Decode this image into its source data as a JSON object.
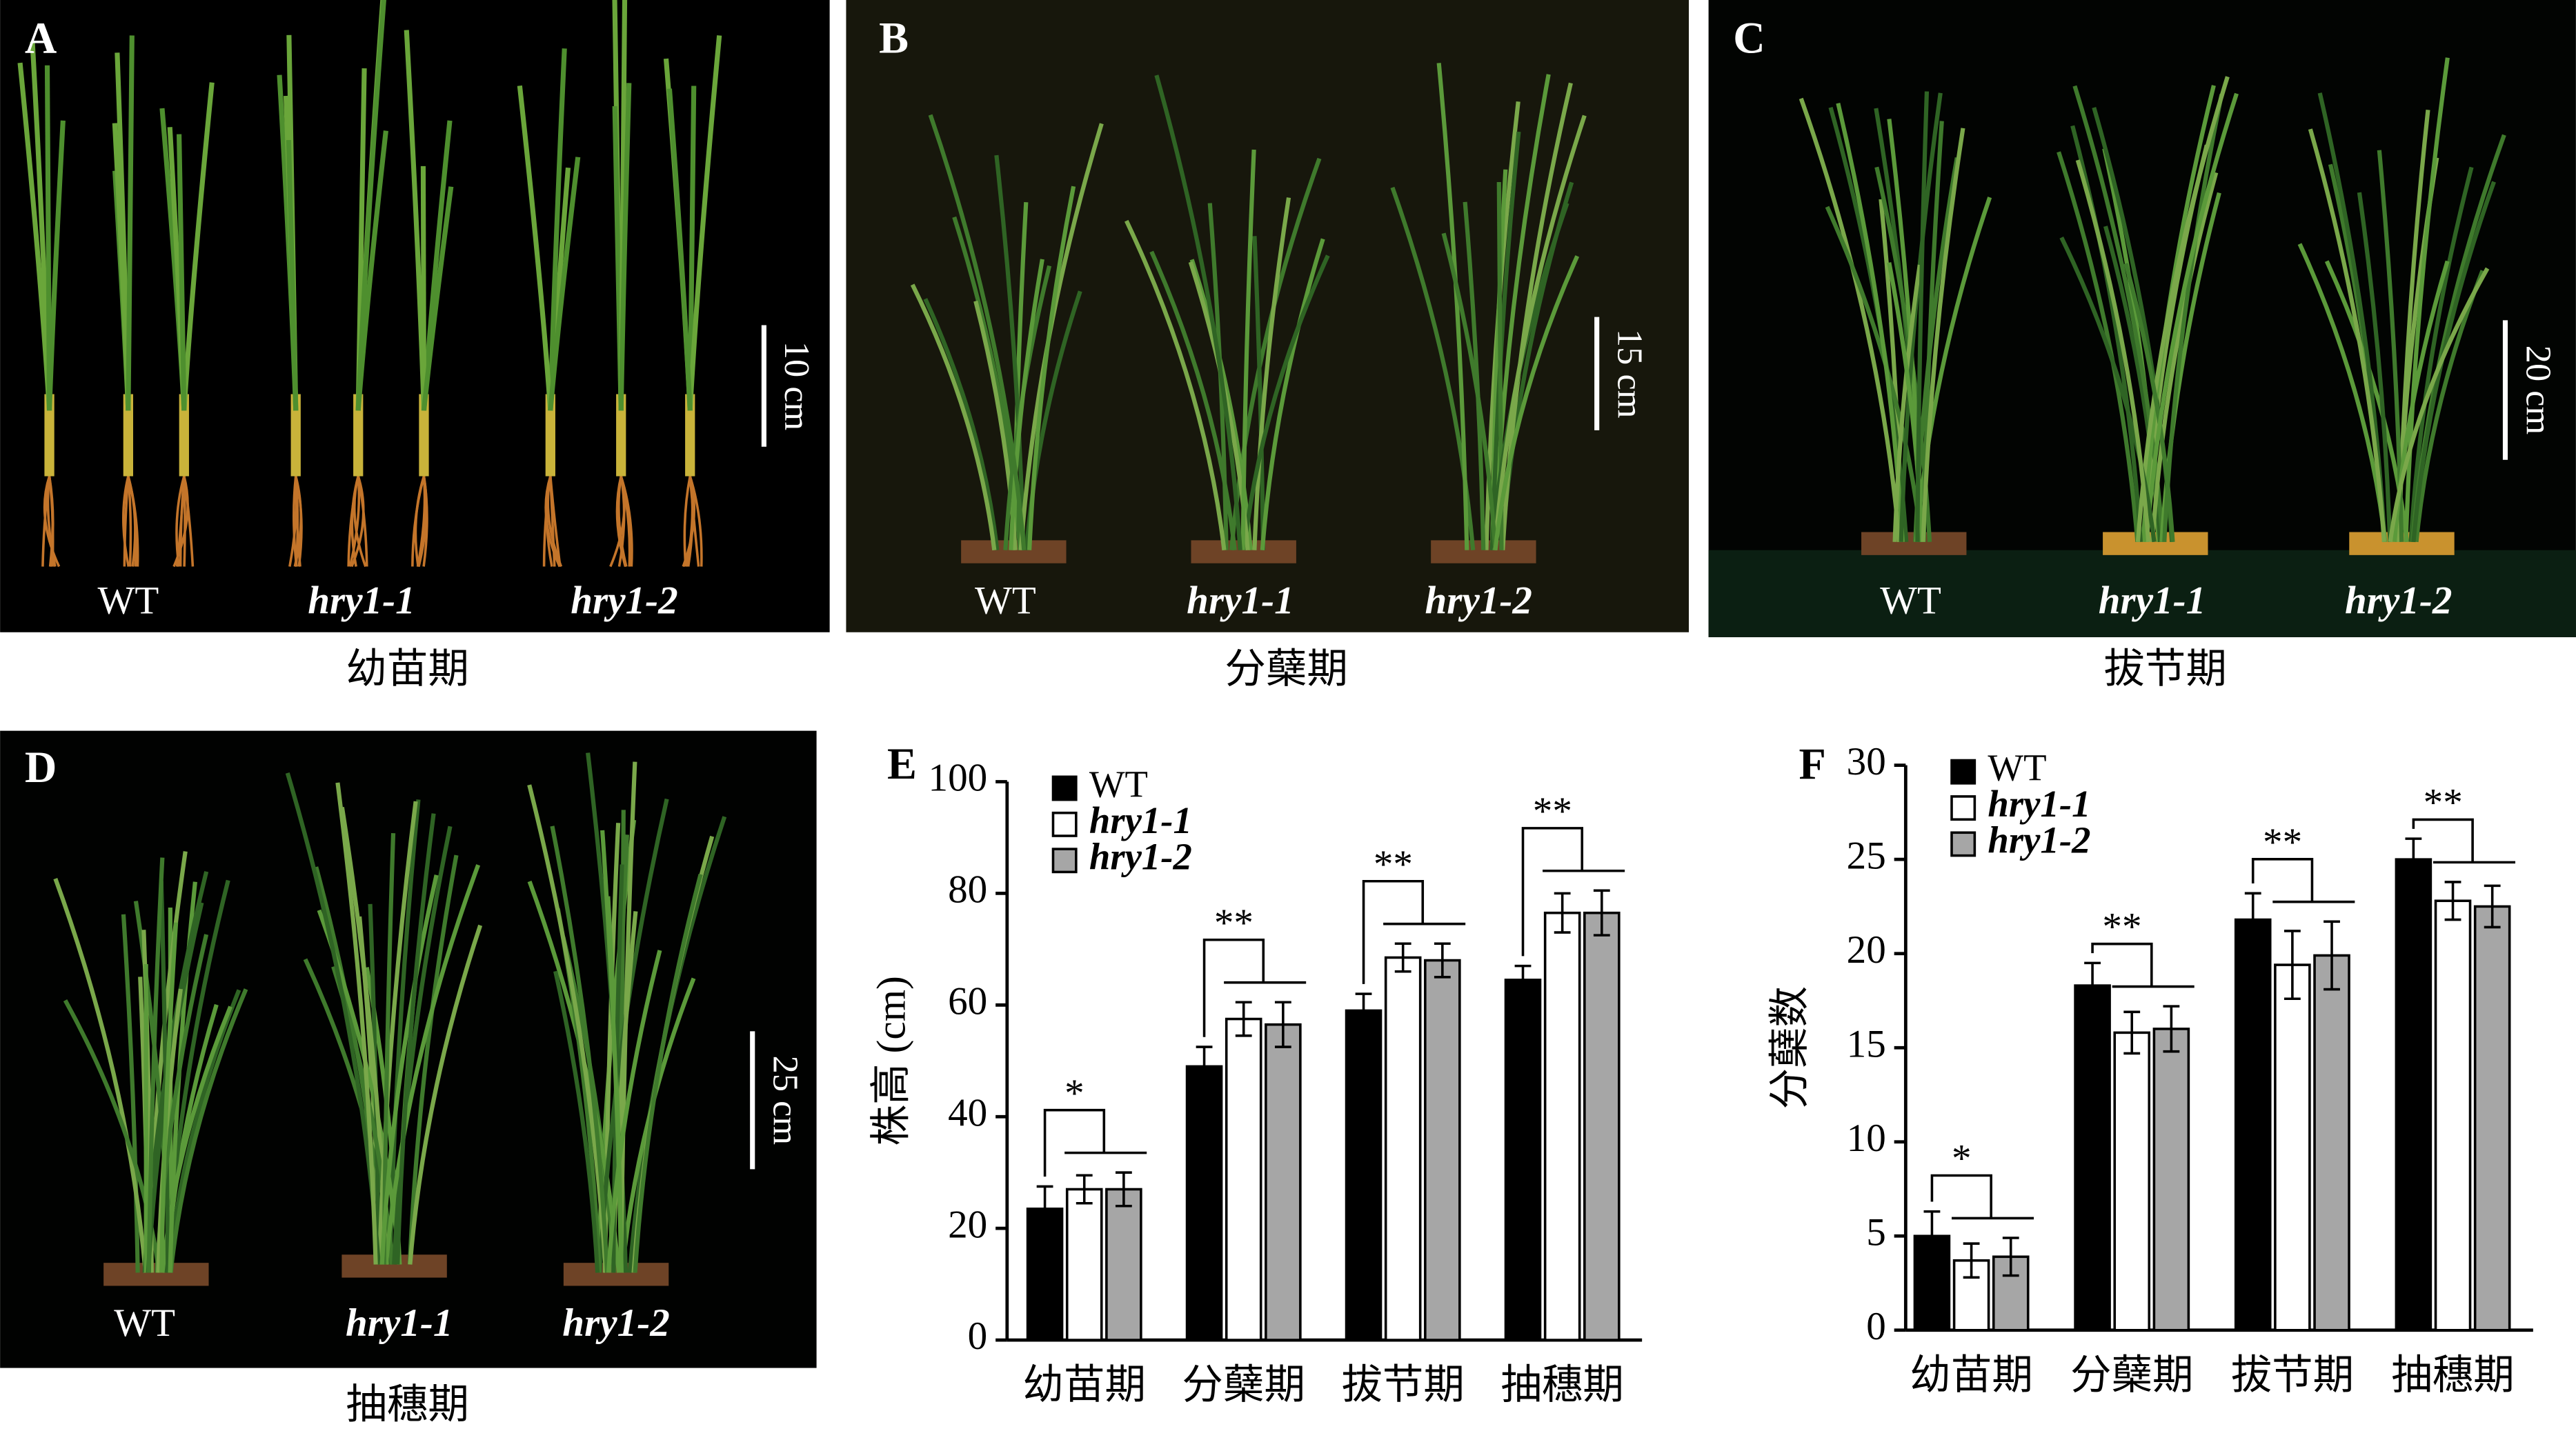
{
  "panels": [
    {
      "letter": "A",
      "genotypes": [
        "WT",
        "hry1-1",
        "hry1-2"
      ],
      "scale_bar": "10 cm",
      "caption": "幼苗期"
    },
    {
      "letter": "B",
      "genotypes": [
        "WT",
        "hry1-1",
        "hry1-2"
      ],
      "scale_bar": "15 cm",
      "caption": "分蘖期"
    },
    {
      "letter": "C",
      "genotypes": [
        "WT",
        "hry1-1",
        "hry1-2"
      ],
      "scale_bar": "20 cm",
      "caption": "拔节期"
    },
    {
      "letter": "D",
      "genotypes": [
        "WT",
        "hry1-1",
        "hry1-2"
      ],
      "scale_bar": "25 cm",
      "caption": "抽穗期"
    }
  ],
  "chart_data": [
    {
      "type": "bar",
      "label": "E",
      "y_label": "株高 (cm)",
      "categories": [
        "幼苗期",
        "分蘖期",
        "拔节期",
        "抽穗期"
      ],
      "series": [
        {
          "name": "WT",
          "color": "#000000",
          "italic": false,
          "values": [
            23.5,
            49,
            59,
            64.5
          ],
          "errors": [
            4,
            3.5,
            3,
            2.5
          ]
        },
        {
          "name": "hry1-1",
          "color": "#ffffff",
          "italic": true,
          "values": [
            27,
            57.5,
            68.5,
            76.5
          ],
          "errors": [
            2.5,
            3,
            2.5,
            3.5
          ]
        },
        {
          "name": "hry1-2",
          "color": "#a6a6a6",
          "italic": true,
          "values": [
            27,
            56.5,
            68,
            76.5
          ],
          "errors": [
            3,
            4,
            3,
            4
          ]
        }
      ],
      "significance": [
        "*",
        "**",
        "**",
        "**"
      ],
      "ylim": [
        0,
        100
      ],
      "yticks": [
        0,
        20,
        40,
        60,
        80,
        100
      ],
      "legend": "top-left"
    },
    {
      "type": "bar",
      "label": "F",
      "y_label": "分蘖数",
      "categories": [
        "幼苗期",
        "分蘖期",
        "拔节期",
        "抽穗期"
      ],
      "series": [
        {
          "name": "WT",
          "color": "#000000",
          "italic": false,
          "values": [
            5,
            18.3,
            21.8,
            25
          ],
          "errors": [
            1.3,
            1.2,
            1.4,
            1.1
          ]
        },
        {
          "name": "hry1-1",
          "color": "#ffffff",
          "italic": true,
          "values": [
            3.7,
            15.8,
            19.4,
            22.8
          ],
          "errors": [
            0.9,
            1.1,
            1.8,
            1.0
          ]
        },
        {
          "name": "hry1-2",
          "color": "#a6a6a6",
          "italic": true,
          "values": [
            3.9,
            16,
            19.9,
            22.5
          ],
          "errors": [
            1.0,
            1.2,
            1.8,
            1.1
          ]
        }
      ],
      "significance": [
        "*",
        "**",
        "**",
        "**"
      ],
      "ylim": [
        0,
        30
      ],
      "yticks": [
        0,
        5,
        10,
        15,
        20,
        25,
        30
      ],
      "legend": "top-left"
    }
  ]
}
